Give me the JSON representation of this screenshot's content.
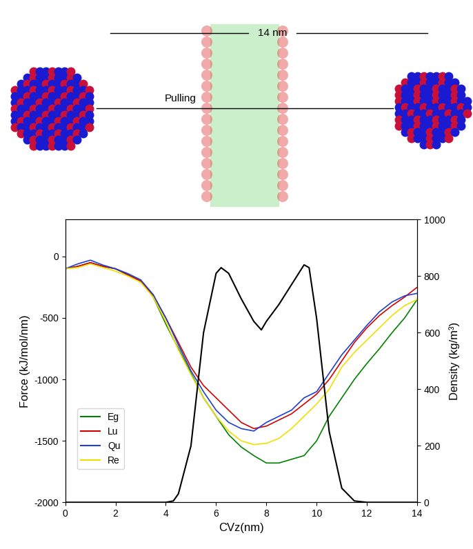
{
  "illustration": {
    "scale_label": "14 nm",
    "pull_label": "Pulling"
  },
  "chart_data": {
    "type": "line",
    "x_label": "CVz(nm)",
    "y_label": "Force (kJ/mol/nm)",
    "y2_label": "Density (kg/m³)",
    "x": [
      0,
      0.5,
      1,
      1.5,
      2,
      2.5,
      3,
      3.5,
      4,
      4.5,
      5,
      5.5,
      6,
      6.5,
      7,
      7.5,
      8,
      8.5,
      9,
      9.5,
      10,
      10.5,
      11,
      11.5,
      12,
      12.5,
      13,
      13.5,
      14
    ],
    "xlim": [
      0,
      14
    ],
    "xticks": [
      0,
      2,
      4,
      6,
      8,
      10,
      12,
      14
    ],
    "ylim": [
      -2000,
      300
    ],
    "yticks": [
      -2000,
      -1500,
      -1000,
      -500,
      0
    ],
    "y2lim": [
      0,
      1000
    ],
    "y2ticks": [
      0,
      200,
      400,
      600,
      800,
      1000
    ],
    "legend": "lower left",
    "series": [
      {
        "name": "Eg",
        "color": "#008000",
        "values": [
          -100,
          -80,
          -50,
          -80,
          -100,
          -150,
          -200,
          -330,
          -550,
          -750,
          -950,
          -1150,
          -1300,
          -1450,
          -1550,
          -1620,
          -1680,
          -1680,
          -1650,
          -1620,
          -1500,
          -1300,
          -1150,
          -1000,
          -870,
          -750,
          -620,
          -500,
          -350
        ]
      },
      {
        "name": "Lu",
        "color": "#d40000",
        "values": [
          -100,
          -80,
          -50,
          -80,
          -100,
          -150,
          -200,
          -320,
          -500,
          -700,
          -900,
          -1050,
          -1150,
          -1250,
          -1350,
          -1400,
          -1380,
          -1330,
          -1280,
          -1200,
          -1120,
          -1000,
          -850,
          -700,
          -580,
          -480,
          -400,
          -330,
          -250
        ]
      },
      {
        "name": "Qu",
        "color": "#1f3fd0",
        "values": [
          -100,
          -60,
          -30,
          -70,
          -100,
          -140,
          -190,
          -310,
          -500,
          -720,
          -930,
          -1100,
          -1250,
          -1350,
          -1400,
          -1420,
          -1350,
          -1300,
          -1250,
          -1150,
          -1100,
          -950,
          -800,
          -680,
          -560,
          -450,
          -370,
          -320,
          -300
        ]
      },
      {
        "name": "Re",
        "color": "#f0e000",
        "values": [
          -100,
          -90,
          -60,
          -90,
          -120,
          -160,
          -210,
          -330,
          -530,
          -760,
          -960,
          -1150,
          -1300,
          -1420,
          -1500,
          -1530,
          -1520,
          -1480,
          -1400,
          -1300,
          -1200,
          -1080,
          -900,
          -780,
          -680,
          -580,
          -480,
          -400,
          -350
        ]
      },
      {
        "name": "Density",
        "color": "#000000",
        "axis": "y2",
        "x": [
          0,
          4,
          4.3,
          4.5,
          5,
          5.5,
          6,
          6.2,
          6.5,
          7,
          7.5,
          7.8,
          8,
          8.5,
          9,
          9.5,
          9.7,
          10,
          10.5,
          11,
          11.5,
          12,
          14
        ],
        "values": [
          0,
          0,
          5,
          30,
          200,
          600,
          810,
          830,
          810,
          720,
          640,
          610,
          640,
          700,
          770,
          840,
          830,
          650,
          250,
          50,
          5,
          0,
          0
        ]
      }
    ]
  }
}
